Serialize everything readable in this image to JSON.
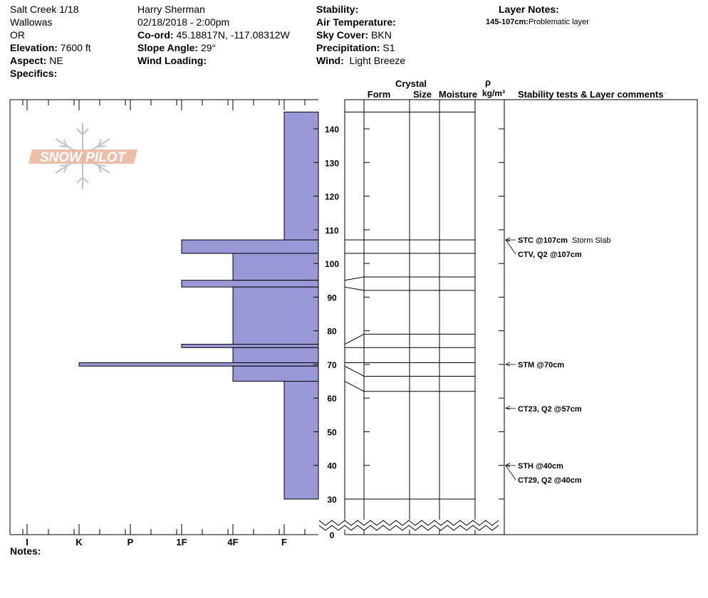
{
  "header": {
    "location": "Salt Creek 1/18",
    "range": "Wallowas",
    "state": "OR",
    "elevation_label": "Elevation:",
    "elevation": "7600 ft",
    "aspect_label": "Aspect:",
    "aspect": "NE",
    "specifics_label": "Specifics:",
    "observer": "Harry Sherman",
    "datetime": "02/18/2018 - 2:00pm",
    "coord_label": "Co-ord:",
    "coord": "45.18817N, -117.08312W",
    "slope_label": "Slope Angle:",
    "slope": "29°",
    "wind_loading_label": "Wind Loading:",
    "stability_label": "Stability:",
    "air_temp_label": "Air Temperature:",
    "sky_label": "Sky Cover:",
    "sky": "BKN",
    "precip_label": "Precipitation:",
    "precip": "S1",
    "wind_label": "Wind:",
    "wind": "Light Breeze",
    "layer_notes_label": "Layer Notes:",
    "layer_note_range": "145-107cm:",
    "layer_note_text": "Problematic layer",
    "notes_label": "Notes:"
  },
  "logo_text": "SNOW PILOT",
  "colors": {
    "hardness_fill": "#9999d8",
    "logo": "#e8b49a",
    "logo_flake": "#b8c4d0"
  },
  "chart_data": {
    "type": "bar",
    "orientation": "horizontal",
    "hardness_axis": [
      "I",
      "K",
      "P",
      "1F",
      "4F",
      "F"
    ],
    "hardness_axis_order": "right-to-left softest at right (F), hardest at left (I)",
    "height_axis": {
      "min": 0,
      "break_below": 30,
      "max": 145,
      "ticks": [
        0,
        30,
        40,
        50,
        60,
        70,
        80,
        90,
        100,
        110,
        120,
        130,
        140
      ]
    },
    "layers": [
      {
        "top": 145,
        "bottom": 107,
        "hardness": "F"
      },
      {
        "top": 107,
        "bottom": 103,
        "hardness": "1F"
      },
      {
        "top": 103,
        "bottom": 95,
        "hardness": "4F"
      },
      {
        "top": 95,
        "bottom": 93,
        "hardness": "1F"
      },
      {
        "top": 93,
        "bottom": 76,
        "hardness": "4F"
      },
      {
        "top": 76,
        "bottom": 75,
        "hardness": "1F"
      },
      {
        "top": 75,
        "bottom": 70.5,
        "hardness": "4F"
      },
      {
        "top": 70.5,
        "bottom": 69.5,
        "hardness": "K"
      },
      {
        "top": 69.5,
        "bottom": 65,
        "hardness": "4F"
      },
      {
        "top": 65,
        "bottom": 30,
        "hardness": "F"
      }
    ],
    "columns": {
      "crystal_label": "Crystal",
      "form": "Form",
      "size": "Size",
      "moisture": "Moisture",
      "rho": "ρ",
      "density_unit": "kg/m³",
      "tests_header": "Stability tests & Layer comments"
    },
    "boundaries": [
      {
        "right": 145,
        "left": 145
      },
      {
        "right": 107,
        "left": 107
      },
      {
        "right": 103,
        "left": 103
      },
      {
        "right": 96,
        "left": 95
      },
      {
        "right": 92,
        "left": 93
      },
      {
        "right": 79,
        "left": 76
      },
      {
        "right": 75,
        "left": 75
      },
      {
        "right": 70.5,
        "left": 70.5
      },
      {
        "right": 66.5,
        "left": 69.5
      },
      {
        "right": 62,
        "left": 65
      },
      {
        "right": 30,
        "left": 30
      }
    ],
    "annotations": [
      {
        "depth": 107,
        "label": "STC @107cm",
        "label_bold": true,
        "comment": "Storm Slab",
        "label_y": 337
      },
      {
        "depth": 107,
        "label": "CTV, Q2 @107cm",
        "label_bold": true,
        "comment": "",
        "label_y": 357
      },
      {
        "depth": 70,
        "label": "STM @70cm",
        "label_bold": true,
        "comment": "",
        "label_y": 512
      },
      {
        "depth": 57,
        "label": "CT23, Q2 @57cm",
        "label_bold": true,
        "comment": "",
        "label_y": 574
      },
      {
        "depth": 40,
        "label": "STH @40cm",
        "label_bold": true,
        "comment": "",
        "label_y": 654
      },
      {
        "depth": 40,
        "label": "CT29, Q2 @40cm",
        "label_bold": true,
        "comment": "",
        "label_y": 674
      }
    ]
  }
}
